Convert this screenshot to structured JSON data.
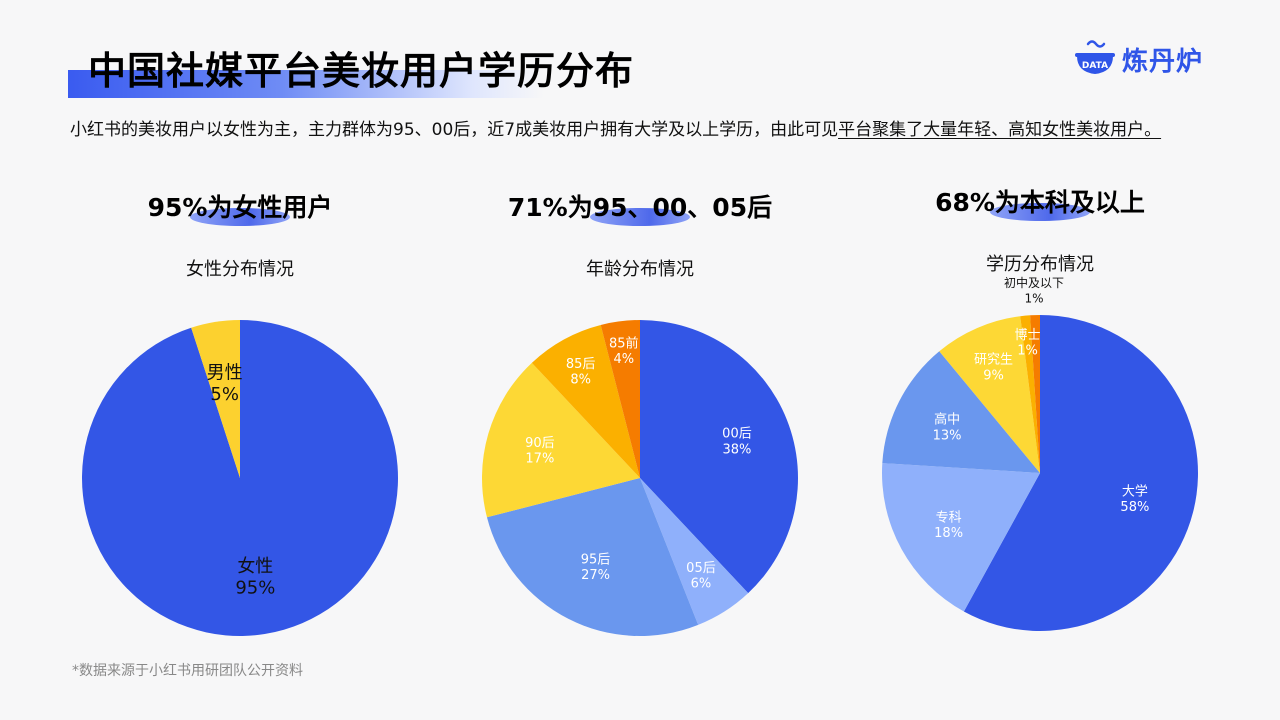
{
  "page": {
    "title": "中国社媒平台美妆用户学历分布",
    "logo_text": "炼丹炉",
    "logo_badge": "DATA",
    "intro_plain": "小红书的美妆用户以女性为主，主力群体为95、00后，近7成美妆用户拥有大学及以上学历，由此可见",
    "intro_underlined": "平台聚集了大量年轻、高知女性美妆用户。",
    "footer": "*数据来源于小红书用研团队公开资料",
    "accent_color": "#2f55e8"
  },
  "stats": [
    "95%为女性用户",
    "71%为95、00、05后",
    "68%为本科及以上"
  ],
  "chart_data": [
    {
      "type": "pie",
      "title": "女性分布情况",
      "categories": [
        "女性",
        "男性"
      ],
      "values": [
        95,
        5
      ],
      "labels": [
        "95%",
        "5%"
      ],
      "colors": [
        "#3356e6",
        "#fcd12f"
      ],
      "label_colors": [
        "#111111",
        "#111111"
      ]
    },
    {
      "type": "pie",
      "title": "年龄分布情况",
      "categories": [
        "00后",
        "05后",
        "95后",
        "90后",
        "85后",
        "85前"
      ],
      "values": [
        38,
        6,
        27,
        17,
        8,
        4
      ],
      "labels": [
        "38%",
        "6%",
        "27%",
        "17%",
        "8%",
        "4%"
      ],
      "colors": [
        "#3356e6",
        "#8fb0fb",
        "#6a97ee",
        "#fdd835",
        "#fbb000",
        "#f57c00"
      ],
      "label_colors": [
        "#ffffff",
        "#ffffff",
        "#ffffff",
        "#ffffff",
        "#ffffff",
        "#ffffff"
      ]
    },
    {
      "type": "pie",
      "title": "学历分布情况",
      "categories": [
        "大学",
        "专科",
        "高中",
        "研究生",
        "博士",
        "初中及以下"
      ],
      "values": [
        58,
        18,
        13,
        9,
        1,
        1
      ],
      "labels": [
        "58%",
        "18%",
        "13%",
        "9%",
        "1%",
        "1%"
      ],
      "colors": [
        "#3356e6",
        "#8fb0fb",
        "#6a97ee",
        "#fdd835",
        "#fbb000",
        "#f57c00"
      ],
      "label_colors": [
        "#ffffff",
        "#ffffff",
        "#ffffff",
        "#ffffff",
        "#ffffff",
        "#111111"
      ]
    }
  ]
}
